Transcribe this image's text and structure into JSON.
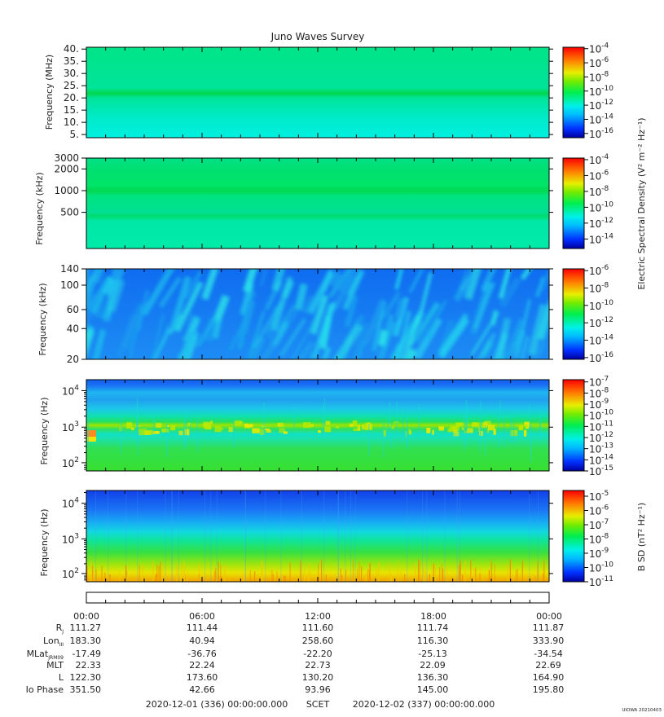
{
  "title": "Juno Waves Survey",
  "stamp": "UIOWA 20210403",
  "colorbars": {
    "e_label": "Electric Spectral Density",
    "e_unit": "(V² m⁻² Hz⁻¹)",
    "b_label": "B SD",
    "b_unit": "(nT² Hz⁻¹)"
  },
  "chart_data": [
    {
      "type": "heatmap",
      "ylabel": "Frequency (MHz)",
      "yticks": [
        "40.",
        "35.",
        "30.",
        "25.",
        "20.",
        "15.",
        "10.",
        "5."
      ],
      "colorbar_ticks": [
        "-4",
        "-6",
        "-8",
        "-10",
        "-12",
        "-14",
        "-16"
      ],
      "color_range_log10": [
        -16.6,
        -3.8
      ],
      "features": "uniform background ~1e-13; narrow band near 21 MHz ~1e-11"
    },
    {
      "type": "heatmap",
      "ylabel": "Frequency (kHz)",
      "yticks": [
        "3000",
        "2000",
        "1000",
        "500"
      ],
      "colorbar_ticks": [
        "-4",
        "-6",
        "-8",
        "-10",
        "-12",
        "-14"
      ],
      "color_range_log10": [
        -15.2,
        -3.8
      ],
      "features": "background ~1e-12; bands near 1000 kHz and 500 kHz ~1e-11"
    },
    {
      "type": "heatmap",
      "ylabel": "Frequency (kHz)",
      "yticks": [
        "140",
        "100",
        "60",
        "40",
        "20"
      ],
      "colorbar_ticks": [
        "-6",
        "-8",
        "-10",
        "-12",
        "-14",
        "-16"
      ],
      "color_range_log10": [
        -16.2,
        -5.8
      ],
      "features": "background ~1e-15; diagonal streaky emissions ~1e-13"
    },
    {
      "type": "heatmap",
      "ylabel": "Frequency (Hz)",
      "yticks": [
        {
          "base": "10",
          "exp": "4"
        },
        {
          "base": "10",
          "exp": "3"
        },
        {
          "base": "10",
          "exp": "2"
        }
      ],
      "colorbar_ticks": [
        "-7",
        "-8",
        "-9",
        "-10",
        "-11",
        "-12",
        "-13",
        "-14",
        "-15"
      ],
      "color_range_log10": [
        -15.0,
        -6.8
      ],
      "features": "low freq ~1e-10; band near 1000 Hz ~1e-9; upper ~1e-13 to 1e-14"
    },
    {
      "type": "heatmap",
      "ylabel": "Frequency (Hz)",
      "yticks": [
        {
          "base": "10",
          "exp": "4"
        },
        {
          "base": "10",
          "exp": "3"
        },
        {
          "base": "10",
          "exp": "2"
        }
      ],
      "colorbar_ticks": [
        "-5",
        "-6",
        "-7",
        "-8",
        "-9",
        "-10",
        "-11"
      ],
      "color_range_log10": [
        -11.0,
        -4.6
      ],
      "features": "gradient from ~1e-6 at 50 Hz to ~1e-10 at 20 kHz with vertical impulses"
    }
  ],
  "x_axis": {
    "labels": [
      "00:00",
      "06:00",
      "12:00",
      "18:00",
      "00:00"
    ],
    "ephemeris": [
      {
        "name": "R",
        "sub": "J",
        "values": [
          "111.27",
          "111.44",
          "111.60",
          "111.74",
          "111.87"
        ]
      },
      {
        "name": "Lon",
        "sub": "III",
        "values": [
          "183.30",
          "40.94",
          "258.60",
          "116.30",
          "333.90"
        ]
      },
      {
        "name": "MLat",
        "sub": "JRM09",
        "values": [
          "-17.49",
          "-36.76",
          "-22.20",
          "-25.13",
          "-34.54"
        ]
      },
      {
        "name": "MLT",
        "sub": "",
        "values": [
          "22.33",
          "22.24",
          "22.73",
          "22.09",
          "22.69"
        ]
      },
      {
        "name": "L",
        "sub": "",
        "values": [
          "122.30",
          "173.60",
          "130.20",
          "136.30",
          "164.90"
        ]
      },
      {
        "name": "Io Phase",
        "sub": "",
        "values": [
          "351.50",
          "42.66",
          "93.96",
          "145.00",
          "195.80"
        ]
      }
    ],
    "start": "2020-12-01 (336) 00:00:00.000",
    "scet": "SCET",
    "end": "2020-12-02 (337) 00:00:00.000"
  }
}
